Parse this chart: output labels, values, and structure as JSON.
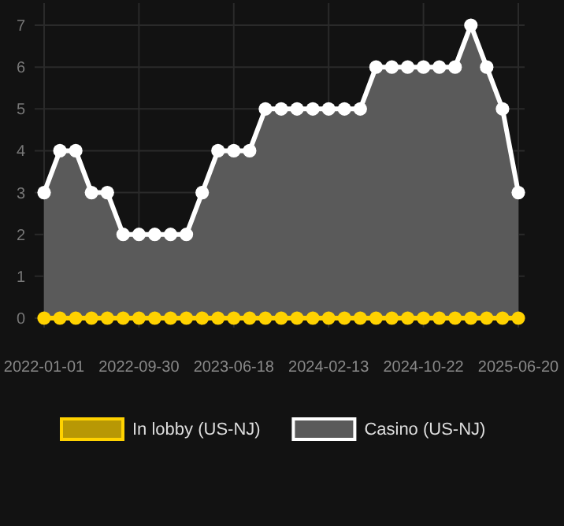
{
  "chart_data": {
    "type": "line",
    "categories": [
      "2022-01-01",
      null,
      null,
      null,
      null,
      null,
      "2022-09-30",
      null,
      null,
      null,
      null,
      null,
      "2023-06-18",
      null,
      null,
      null,
      null,
      null,
      "2024-02-13",
      null,
      null,
      null,
      null,
      null,
      "2024-10-22",
      null,
      null,
      null,
      null,
      null,
      "2025-06-20"
    ],
    "series": [
      {
        "name": "In lobby (US-NJ)",
        "color": "#ffd200",
        "values": [
          0,
          0,
          0,
          0,
          0,
          0,
          0,
          0,
          0,
          0,
          0,
          0,
          0,
          0,
          0,
          0,
          0,
          0,
          0,
          0,
          0,
          0,
          0,
          0,
          0,
          0,
          0,
          0,
          0,
          0,
          0
        ]
      },
      {
        "name": "Casino (US-NJ)",
        "type": "area",
        "color": "#ffffff",
        "values": [
          3,
          4,
          4,
          3,
          3,
          2,
          2,
          2,
          2,
          2,
          3,
          4,
          4,
          4,
          5,
          5,
          5,
          5,
          5,
          5,
          5,
          6,
          6,
          6,
          6,
          6,
          6,
          7,
          6,
          5,
          3
        ]
      }
    ],
    "ylim": [
      0,
      7
    ],
    "yticks": [
      0,
      1,
      2,
      3,
      4,
      5,
      6,
      7
    ],
    "grid": true,
    "legend": "bottom",
    "marker": "circle",
    "line_style": "solid"
  }
}
